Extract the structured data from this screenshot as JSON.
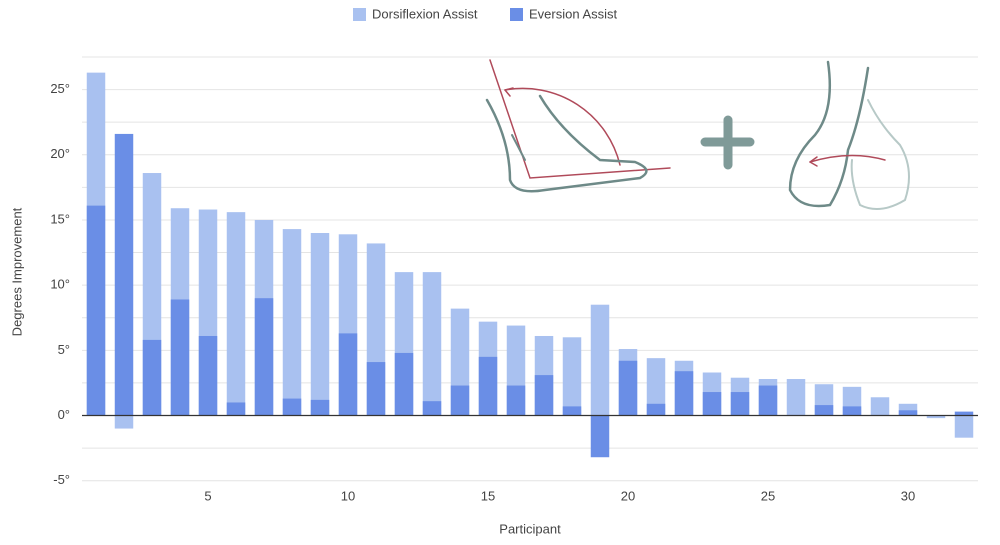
{
  "chart_data": {
    "type": "bar",
    "mode": "overlap",
    "x_label": "Participant",
    "y_label": "Degrees Improvement",
    "x": [
      1,
      2,
      3,
      4,
      5,
      6,
      7,
      8,
      9,
      10,
      11,
      12,
      13,
      14,
      15,
      16,
      17,
      18,
      19,
      20,
      21,
      22,
      23,
      24,
      25,
      26,
      27,
      28,
      29,
      30,
      31,
      32
    ],
    "series": [
      {
        "name": "Dorsiflexion Assist",
        "color": "#a9c1f0",
        "values": [
          26.3,
          -1.0,
          18.6,
          15.9,
          15.8,
          15.6,
          15.0,
          14.3,
          14.0,
          13.9,
          13.2,
          11.0,
          11.0,
          8.2,
          7.2,
          6.9,
          6.1,
          6.0,
          8.5,
          5.1,
          4.4,
          4.2,
          3.3,
          2.9,
          2.8,
          2.8,
          2.4,
          2.2,
          1.4,
          0.9,
          -0.2,
          -1.7
        ]
      },
      {
        "name": "Eversion Assist",
        "color": "#6a8ee6",
        "values": [
          16.1,
          21.6,
          5.8,
          8.9,
          6.1,
          1.0,
          9.0,
          1.3,
          1.2,
          6.3,
          4.1,
          4.8,
          1.1,
          2.3,
          4.5,
          2.3,
          3.1,
          0.7,
          -3.2,
          4.2,
          0.9,
          3.4,
          1.8,
          1.8,
          2.3,
          0,
          0.8,
          0.7,
          0,
          0.4,
          0,
          0.3
        ]
      }
    ],
    "xlim": [
      0.5,
      32.5
    ],
    "xticks": [
      5,
      10,
      15,
      20,
      25,
      30
    ],
    "ylim": [
      -6.25,
      27.5
    ],
    "yticks": [
      {
        "value": -5,
        "label": "-5°"
      },
      {
        "value": 0,
        "label": "0°"
      },
      {
        "value": 5,
        "label": "5°"
      },
      {
        "value": 10,
        "label": "10°"
      },
      {
        "value": 15,
        "label": "15°"
      },
      {
        "value": 20,
        "label": "20°"
      },
      {
        "value": 25,
        "label": "25°"
      }
    ],
    "minor_yticks": [
      -2.5,
      2.5,
      7.5,
      12.5,
      17.5,
      22.5,
      27.5
    ],
    "grid": true,
    "legend": "top"
  }
}
